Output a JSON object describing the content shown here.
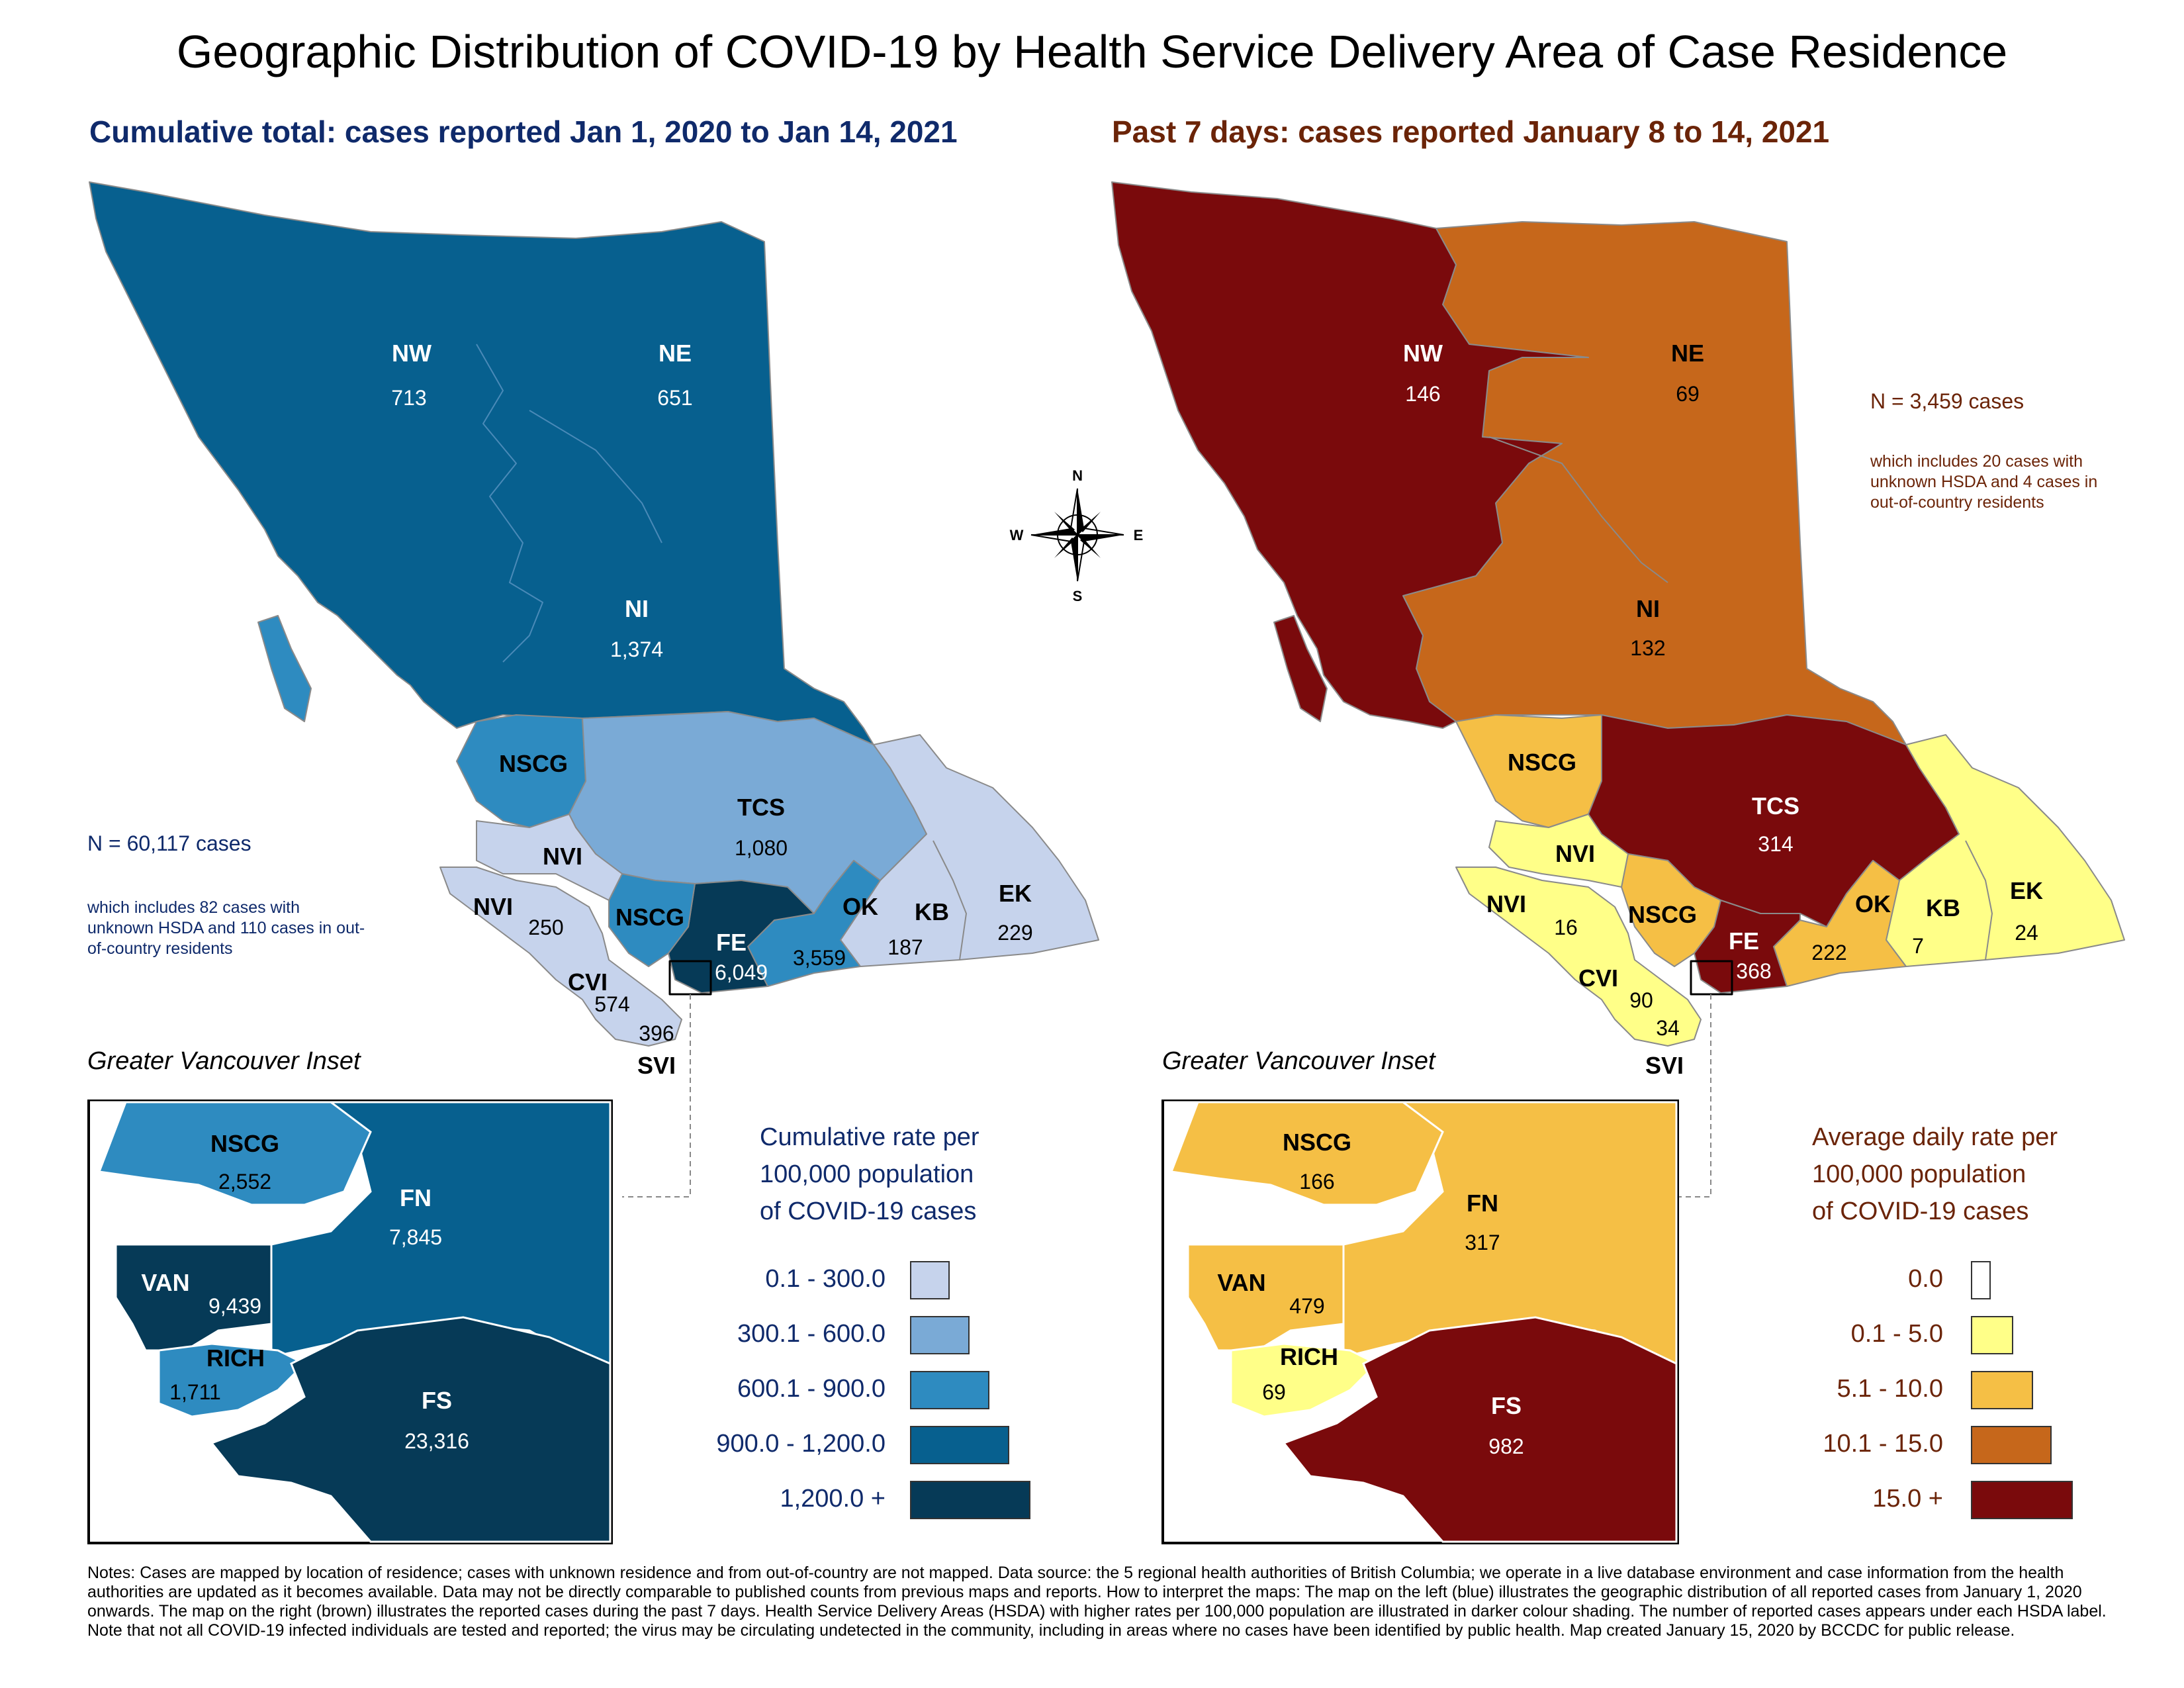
{
  "title": "Geographic Distribution of COVID-19 by Health Service Delivery Area of Case Residence",
  "left": {
    "subtitle": "Cumulative total: cases reported Jan 1, 2020 to Jan 14, 2021",
    "n_total": "N = 60,117 cases",
    "n_note": "which includes 82 cases with unknown HSDA and 110 cases in out-of-country residents",
    "regions": {
      "NW": {
        "label": "NW",
        "value": "713"
      },
      "NE": {
        "label": "NE",
        "value": "651"
      },
      "NI": {
        "label": "NI",
        "value": "1,374"
      },
      "NSCG": {
        "label": "NSCG",
        "value": ""
      },
      "TCS": {
        "label": "TCS",
        "value": "1,080"
      },
      "NVI_top": {
        "label": "NVI"
      },
      "NVI": {
        "label": "NVI",
        "value": "250"
      },
      "NSCG2": {
        "label": "NSCG"
      },
      "FE": {
        "label": "FE",
        "value": "6,049"
      },
      "OK": {
        "label": "OK",
        "value": "3,559"
      },
      "KB": {
        "label": "KB",
        "value": "187"
      },
      "EK": {
        "label": "EK",
        "value": "229"
      },
      "CVI": {
        "label": "CVI",
        "value": "574"
      },
      "SVI": {
        "label": "SVI",
        "value": "396"
      }
    },
    "inset": {
      "title": "Greater Vancouver Inset",
      "NSCG": {
        "label": "NSCG",
        "value": "2,552"
      },
      "FN": {
        "label": "FN",
        "value": "7,845"
      },
      "VAN": {
        "label": "VAN",
        "value": "9,439"
      },
      "RICH": {
        "label": "RICH",
        "value": "1,711"
      },
      "FS": {
        "label": "FS",
        "value": "23,316"
      }
    },
    "legend": {
      "title_lines": [
        "Cumulative rate per",
        "100,000 population",
        "of COVID-19 cases"
      ],
      "items": [
        {
          "label": "0.1 - 300.0",
          "color": "#c6d3ec"
        },
        {
          "label": "300.1 - 600.0",
          "color": "#7aaad6"
        },
        {
          "label": "600.1 - 900.0",
          "color": "#2e8bc0"
        },
        {
          "label": "900.0 - 1,200.0",
          "color": "#07608f"
        },
        {
          "label": "1,200.0 +",
          "color": "#063a57"
        }
      ]
    }
  },
  "right": {
    "subtitle": "Past 7 days: cases reported January 8 to 14, 2021",
    "n_total": "N = 3,459 cases",
    "n_note": "which includes 20 cases with unknown HSDA and 4 cases in out-of-country residents",
    "regions": {
      "NW": {
        "label": "NW",
        "value": "146"
      },
      "NE": {
        "label": "NE",
        "value": "69"
      },
      "NI": {
        "label": "NI",
        "value": "132"
      },
      "NSCG": {
        "label": "NSCG"
      },
      "TCS": {
        "label": "TCS",
        "value": "314"
      },
      "NVI_top": {
        "label": "NVI"
      },
      "NVI": {
        "label": "NVI",
        "value": "16"
      },
      "NSCG2": {
        "label": "NSCG"
      },
      "FE": {
        "label": "FE",
        "value": "368"
      },
      "OK": {
        "label": "OK",
        "value": "222"
      },
      "KB": {
        "label": "KB",
        "value": "7"
      },
      "EK": {
        "label": "EK",
        "value": "24"
      },
      "CVI": {
        "label": "CVI",
        "value": "90"
      },
      "SVI": {
        "label": "SVI",
        "value": "34"
      }
    },
    "inset": {
      "title": "Greater Vancouver Inset",
      "NSCG": {
        "label": "NSCG",
        "value": "166"
      },
      "FN": {
        "label": "FN",
        "value": "317"
      },
      "VAN": {
        "label": "VAN",
        "value": "479"
      },
      "RICH": {
        "label": "RICH",
        "value": "69"
      },
      "FS": {
        "label": "FS",
        "value": "982"
      }
    },
    "legend": {
      "title_lines": [
        "Average daily rate per",
        "100,000 population",
        "of COVID-19 cases"
      ],
      "items": [
        {
          "label": "0.0",
          "color": "#ffffff"
        },
        {
          "label": "0.1 - 5.0",
          "color": "#ffff88"
        },
        {
          "label": "5.1 - 10.0",
          "color": "#f5bf45"
        },
        {
          "label": "10.1 - 15.0",
          "color": "#c6671b"
        },
        {
          "label": "15.0 +",
          "color": "#7a0a0c"
        }
      ]
    }
  },
  "compass": {
    "n": "N",
    "s": "S",
    "e": "E",
    "w": "W"
  },
  "notes": "Notes: Cases are mapped by location of residence; cases with unknown residence and from out-of-country are not mapped. Data source: the 5 regional health authorities of British Columbia; we operate in a live database environment and case information from the health authorities are updated as it becomes available. Data may not be directly comparable to published counts from previous maps and reports. How to interpret the maps: The map on the left (blue) illustrates the geographic distribution of all reported cases from January 1, 2020 onwards. The map on the right (brown) illustrates the reported cases during the past 7 days. Health Service Delivery Areas (HSDA) with higher rates per 100,000 population are illustrated in darker colour shading. The number of reported cases appears under each HSDA label. Note that not all COVID-19 infected individuals are tested and reported; the virus may be circulating undetected in the community, including in areas where no cases have been identified by public health. Map created January 15, 2020 by BCCDC for public release.",
  "colors": {
    "left_sub": "#0f2a6b",
    "right_sub": "#6b2408",
    "water": "#ffffff"
  }
}
